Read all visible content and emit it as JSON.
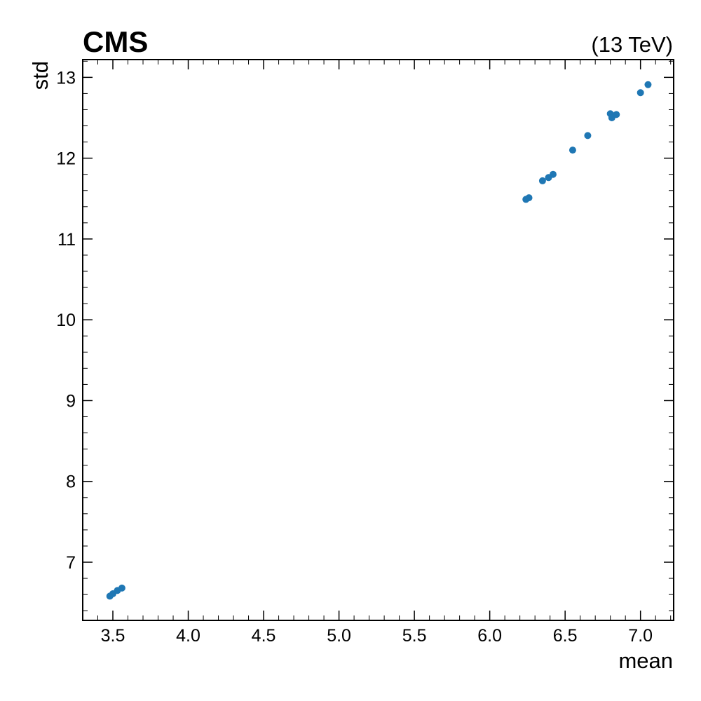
{
  "header": {
    "experiment": "CMS",
    "energy": "(13 TeV)"
  },
  "chart_data": {
    "type": "scatter",
    "xlabel": "mean",
    "ylabel": "std",
    "xlim": [
      3.3,
      7.22
    ],
    "ylim": [
      6.28,
      13.22
    ],
    "xticks": [
      "3.5",
      "4.0",
      "4.5",
      "5.0",
      "5.5",
      "6.0",
      "6.5",
      "7.0"
    ],
    "xtick_values": [
      3.5,
      4.0,
      4.5,
      5.0,
      5.5,
      6.0,
      6.5,
      7.0
    ],
    "yticks": [
      "7",
      "8",
      "9",
      "10",
      "11",
      "12",
      "13"
    ],
    "ytick_values": [
      7,
      8,
      9,
      10,
      11,
      12,
      13
    ],
    "grid": false,
    "marker_color": "#1f77b4",
    "points": [
      {
        "x": 3.48,
        "y": 6.58
      },
      {
        "x": 3.5,
        "y": 6.61
      },
      {
        "x": 3.53,
        "y": 6.65
      },
      {
        "x": 3.56,
        "y": 6.68
      },
      {
        "x": 6.24,
        "y": 11.49
      },
      {
        "x": 6.26,
        "y": 11.51
      },
      {
        "x": 6.35,
        "y": 11.72
      },
      {
        "x": 6.39,
        "y": 11.76
      },
      {
        "x": 6.42,
        "y": 11.8
      },
      {
        "x": 6.55,
        "y": 12.1
      },
      {
        "x": 6.65,
        "y": 12.28
      },
      {
        "x": 6.8,
        "y": 12.55
      },
      {
        "x": 6.81,
        "y": 12.5
      },
      {
        "x": 6.84,
        "y": 12.54
      },
      {
        "x": 7.0,
        "y": 12.81
      },
      {
        "x": 7.05,
        "y": 12.91
      }
    ]
  }
}
